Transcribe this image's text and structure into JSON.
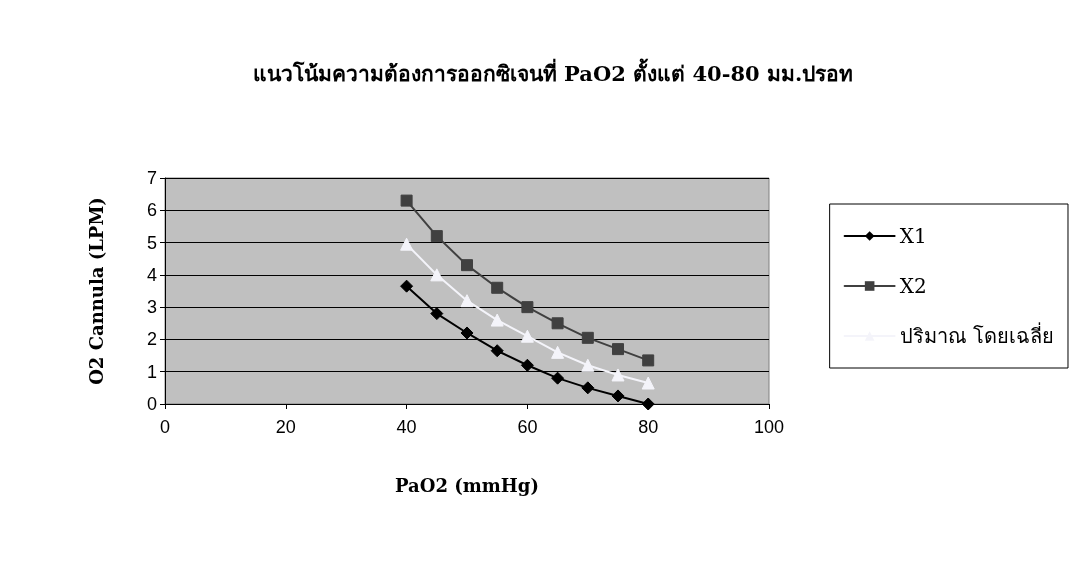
{
  "chart_data": {
    "type": "line",
    "title": "แนวโน้มความต้องการออกซิเจนที่ PaO2 ตั้งแต่ 40-80 มม.ปรอท",
    "xlabel": "PaO2 (mmHg)",
    "ylabel": "O2 Cannula (LPM)",
    "x": [
      40,
      45,
      50,
      55,
      60,
      65,
      70,
      75,
      80
    ],
    "series": [
      {
        "name": "X1",
        "color": "#000000",
        "marker": "diamond",
        "values": [
          3.65,
          2.8,
          2.2,
          1.65,
          1.2,
          0.8,
          0.5,
          0.25,
          0
        ]
      },
      {
        "name": "X2",
        "color": "#404040",
        "marker": "square",
        "values": [
          6.3,
          5.2,
          4.3,
          3.6,
          3.0,
          2.5,
          2.05,
          1.7,
          1.35
        ]
      },
      {
        "name": "ปริมาณ โดยเฉลี่ย",
        "color": "#f4f4fa",
        "marker": "triangle",
        "values": [
          4.95,
          4.0,
          3.2,
          2.6,
          2.1,
          1.6,
          1.2,
          0.9,
          0.65
        ]
      }
    ],
    "xlim": [
      0,
      100
    ],
    "xticks": [
      0,
      20,
      40,
      60,
      80,
      100
    ],
    "ylim": [
      0,
      7
    ],
    "yticks": [
      0,
      1,
      2,
      3,
      4,
      5,
      6,
      7
    ],
    "grid": "y",
    "legend": "right"
  }
}
